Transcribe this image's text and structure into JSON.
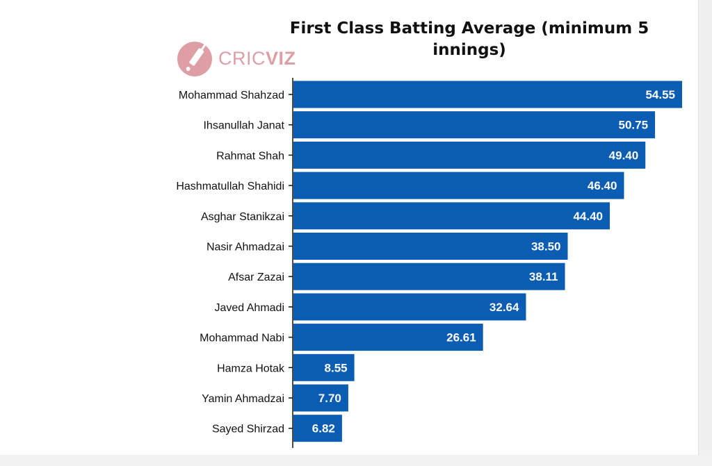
{
  "logo": {
    "prefix": "CRIC",
    "suffix": "VIZ",
    "accent": "#de9ea5"
  },
  "chart_data": {
    "type": "bar",
    "orientation": "horizontal",
    "title": "First Class Batting Average (minimum 5 innings)",
    "bar_color": "#0b5db3",
    "xlim": [
      0,
      57
    ],
    "grid": false,
    "categories": [
      "Mohammad Shahzad",
      "Ihsanullah Janat",
      "Rahmat Shah",
      "Hashmatullah Shahidi",
      "Asghar Stanikzai",
      "Nasir Ahmadzai",
      "Afsar Zazai",
      "Javed Ahmadi",
      "Mohammad Nabi",
      "Hamza Hotak",
      "Yamin Ahmadzai",
      "Sayed Shirzad"
    ],
    "values": [
      54.55,
      50.75,
      49.4,
      46.4,
      44.4,
      38.5,
      38.11,
      32.64,
      26.61,
      8.55,
      7.7,
      6.82
    ],
    "value_labels": [
      "54.55",
      "50.75",
      "49.40",
      "46.40",
      "44.40",
      "38.50",
      "38.11",
      "32.64",
      "26.61",
      "8.55",
      "7.70",
      "6.82"
    ]
  }
}
